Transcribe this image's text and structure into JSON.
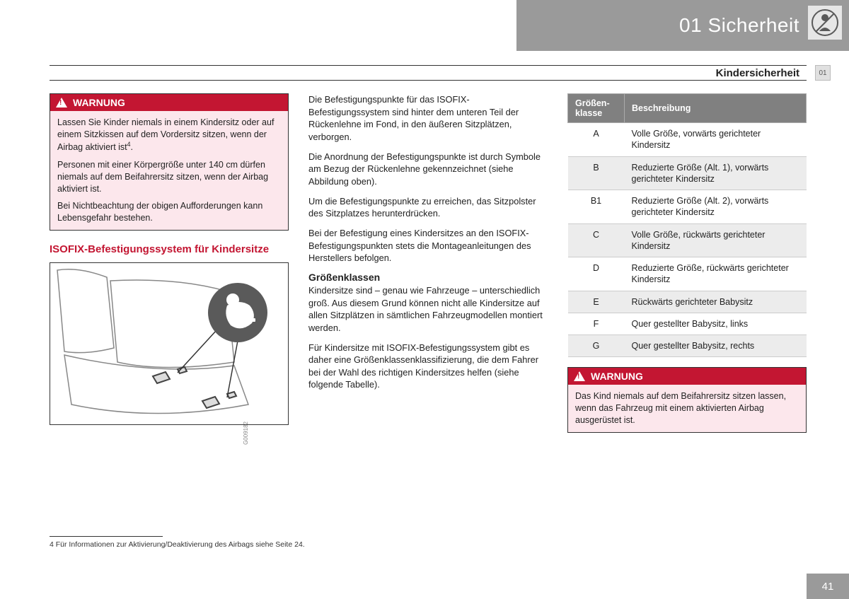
{
  "header": {
    "chapter_number": "01",
    "chapter_title": "Sicherheit",
    "section": "Kindersicherheit",
    "side_tab": "01",
    "header_bg": "#9a9a9a",
    "header_text_color": "#ffffff"
  },
  "column1": {
    "warning1": {
      "label": "WARNUNG",
      "p1": "Lassen Sie Kinder niemals in einem Kindersitz oder auf einem Sitzkissen auf dem Vordersitz sitzen, wenn der Airbag aktiviert ist",
      "p1_sup": "4",
      "p1_suffix": ".",
      "p2": "Personen mit einer Körpergröße unter 140 cm dürfen niemals auf dem Beifahrersitz sitzen, wenn der Airbag aktiviert ist.",
      "p3": "Bei Nichtbeachtung der obigen Aufforderungen kann Lebensgefahr bestehen."
    },
    "section_title": "ISOFIX-Befestigungssystem für Kindersitze",
    "figure_id": "G009182"
  },
  "column2": {
    "p1": "Die Befestigungspunkte für das ISOFIX-Befestigungssystem sind hinter dem unteren Teil der Rückenlehne im Fond, in den äußeren Sitzplätzen, verborgen.",
    "p2": "Die Anordnung der Befestigungspunkte ist durch Symbole am Bezug der Rückenlehne gekennzeichnet (siehe Abbildung oben).",
    "p3": "Um die Befestigungspunkte zu erreichen, das Sitzpolster des Sitzplatzes herunterdrücken.",
    "p4": "Bei der Befestigung eines Kindersitzes an den ISOFIX-Befestigungspunkten stets die Montageanleitungen des Herstellers befolgen.",
    "subhead": "Größenklassen",
    "p5": "Kindersitze sind – genau wie Fahrzeuge – unterschiedlich groß. Aus diesem Grund können nicht alle Kindersitze auf allen Sitzplätzen in sämtlichen Fahrzeugmodellen montiert werden.",
    "p6": "Für Kindersitze mit ISOFIX-Befestigungssystem gibt es daher eine Größenklassenklassifizierung, die dem Fahrer bei der Wahl des richtigen Kindersitzes helfen (siehe folgende Tabelle)."
  },
  "column3": {
    "table": {
      "header_bg": "#808080",
      "header_color": "#ffffff",
      "row_alt_bg": "#ececec",
      "col1": "Größen-klasse",
      "col2": "Beschreibung",
      "rows": [
        {
          "k": "A",
          "v": "Volle Größe, vorwärts gerichteter Kindersitz"
        },
        {
          "k": "B",
          "v": "Reduzierte Größe (Alt. 1), vorwärts gerichteter Kindersitz"
        },
        {
          "k": "B1",
          "v": "Reduzierte Größe (Alt. 2), vorwärts gerichteter Kindersitz"
        },
        {
          "k": "C",
          "v": "Volle Größe, rückwärts gerichteter Kindersitz"
        },
        {
          "k": "D",
          "v": "Reduzierte Größe, rückwärts gerichteter Kindersitz"
        },
        {
          "k": "E",
          "v": "Rückwärts gerichteter Babysitz"
        },
        {
          "k": "F",
          "v": "Quer gestellter Babysitz, links"
        },
        {
          "k": "G",
          "v": "Quer gestellter Babysitz, rechts"
        }
      ]
    },
    "warning2": {
      "label": "WARNUNG",
      "text": "Das Kind niemals auf dem Beifahrersitz sitzen lassen, wenn das Fahrzeug mit einem aktivierten Airbag ausgerüstet ist."
    }
  },
  "footnote": {
    "marker": "4",
    "text": "Für Informationen zur Aktivierung/Deaktivierung des Airbags siehe Seite 24."
  },
  "page_number": "41",
  "colors": {
    "warning_header_bg": "#c31632",
    "warning_body_bg": "#fce7ec",
    "section_title_color": "#c31632"
  }
}
